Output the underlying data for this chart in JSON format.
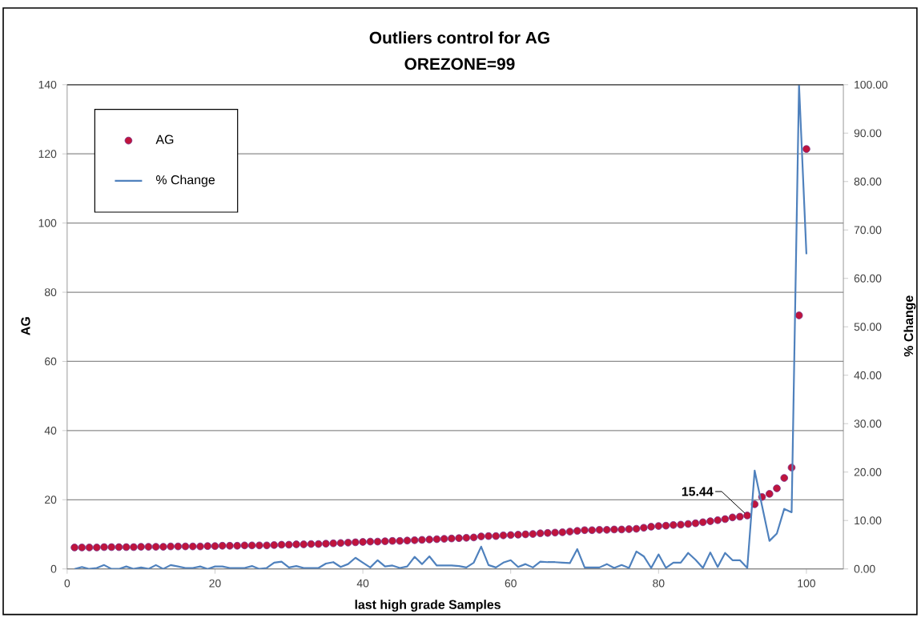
{
  "chart_data": {
    "type": "scatter",
    "title": "Outliers control for AG",
    "subtitle": "OREZONE=99",
    "xlabel": "last high grade Samples",
    "ylabel": "AG",
    "y2label": "% Change",
    "x": [
      1,
      2,
      3,
      4,
      5,
      6,
      7,
      8,
      9,
      10,
      11,
      12,
      13,
      14,
      15,
      16,
      17,
      18,
      19,
      20,
      21,
      22,
      23,
      24,
      25,
      26,
      27,
      28,
      29,
      30,
      31,
      32,
      33,
      34,
      35,
      36,
      37,
      38,
      39,
      40,
      41,
      42,
      43,
      44,
      45,
      46,
      47,
      48,
      49,
      50,
      51,
      52,
      53,
      54,
      55,
      56,
      57,
      58,
      59,
      60,
      61,
      62,
      63,
      64,
      65,
      66,
      67,
      68,
      69,
      70,
      71,
      72,
      73,
      74,
      75,
      76,
      77,
      78,
      79,
      80,
      81,
      82,
      83,
      84,
      85,
      86,
      87,
      88,
      89,
      90,
      91,
      92,
      93,
      94,
      95,
      96,
      97,
      98,
      99,
      100
    ],
    "series": [
      {
        "name": "AG",
        "marker": "circle",
        "color": "#c0143c",
        "values": [
          6.2,
          6.2,
          6.2,
          6.2,
          6.3,
          6.3,
          6.3,
          6.3,
          6.3,
          6.4,
          6.4,
          6.4,
          6.4,
          6.5,
          6.5,
          6.5,
          6.5,
          6.5,
          6.6,
          6.6,
          6.7,
          6.7,
          6.7,
          6.8,
          6.8,
          6.8,
          6.8,
          6.9,
          7.0,
          7.0,
          7.1,
          7.1,
          7.2,
          7.2,
          7.3,
          7.4,
          7.5,
          7.6,
          7.7,
          7.8,
          7.9,
          7.9,
          8.0,
          8.1,
          8.1,
          8.2,
          8.3,
          8.4,
          8.5,
          8.6,
          8.7,
          8.8,
          8.9,
          9.0,
          9.1,
          9.4,
          9.5,
          9.5,
          9.7,
          9.8,
          9.9,
          10.0,
          10.1,
          10.3,
          10.4,
          10.5,
          10.6,
          10.8,
          11.0,
          11.2,
          11.2,
          11.3,
          11.3,
          11.4,
          11.4,
          11.5,
          11.6,
          11.9,
          12.2,
          12.4,
          12.5,
          12.7,
          12.8,
          13.0,
          13.2,
          13.5,
          13.8,
          14.1,
          14.4,
          14.9,
          15.1,
          15.44,
          18.7,
          20.8,
          21.7,
          23.3,
          26.3,
          29.3,
          73.3,
          121.4
        ]
      },
      {
        "name": "% Change",
        "type": "line",
        "axis": "y2",
        "color": "#4f81bd",
        "values": [
          0,
          0.4,
          0,
          0.2,
          0.8,
          0,
          0,
          0.5,
          0,
          0.3,
          0,
          0.8,
          0,
          0.8,
          0.5,
          0.2,
          0.2,
          0.5,
          0,
          0.5,
          0.5,
          0.2,
          0.2,
          0.2,
          0.6,
          0,
          0.2,
          1.3,
          1.5,
          0.3,
          0.6,
          0.2,
          0.2,
          0.2,
          1.1,
          1.4,
          0.4,
          1.0,
          2.3,
          1.3,
          0.3,
          1.8,
          0.5,
          0.7,
          0.2,
          0.5,
          2.5,
          1.0,
          2.6,
          0.7,
          0.7,
          0.7,
          0.6,
          0.3,
          1.3,
          4.6,
          0.8,
          0.3,
          1.3,
          1.8,
          0.4,
          1.0,
          0.3,
          1.5,
          1.4,
          1.4,
          1.3,
          1.2,
          4.1,
          0.3,
          0.3,
          0.3,
          1.0,
          0.2,
          0.8,
          0.2,
          3.6,
          2.6,
          0.2,
          3.0,
          0.2,
          1.3,
          1.3,
          3.3,
          1.9,
          0.2,
          3.4,
          0.4,
          3.3,
          1.8,
          1.8,
          0.2,
          20.3,
          13,
          5.8,
          7.3,
          12.4,
          11.7,
          100,
          65.0
        ]
      }
    ],
    "xlim": [
      0,
      105
    ],
    "xticks": [
      0,
      20,
      40,
      60,
      80,
      100
    ],
    "ylim": [
      0,
      140
    ],
    "yticks": [
      0,
      20,
      40,
      60,
      80,
      100,
      120,
      140
    ],
    "y2lim": [
      0,
      100
    ],
    "y2ticks": [
      {
        "value": 0,
        "label": "0.00"
      },
      {
        "value": 10,
        "label": "10.00"
      },
      {
        "value": 20,
        "label": "20.00"
      },
      {
        "value": 30,
        "label": "30.00"
      },
      {
        "value": 40,
        "label": "40.00"
      },
      {
        "value": 50,
        "label": "50.00"
      },
      {
        "value": 60,
        "label": "60.00"
      },
      {
        "value": 70,
        "label": "70.00"
      },
      {
        "value": 80,
        "label": "80.00"
      },
      {
        "value": 90,
        "label": "90.00"
      },
      {
        "value": 100,
        "label": "100.00"
      }
    ],
    "annotations": [
      {
        "text": "15.44",
        "x": 92,
        "y": 15.44
      }
    ],
    "grid": "y",
    "legend": "top left"
  }
}
